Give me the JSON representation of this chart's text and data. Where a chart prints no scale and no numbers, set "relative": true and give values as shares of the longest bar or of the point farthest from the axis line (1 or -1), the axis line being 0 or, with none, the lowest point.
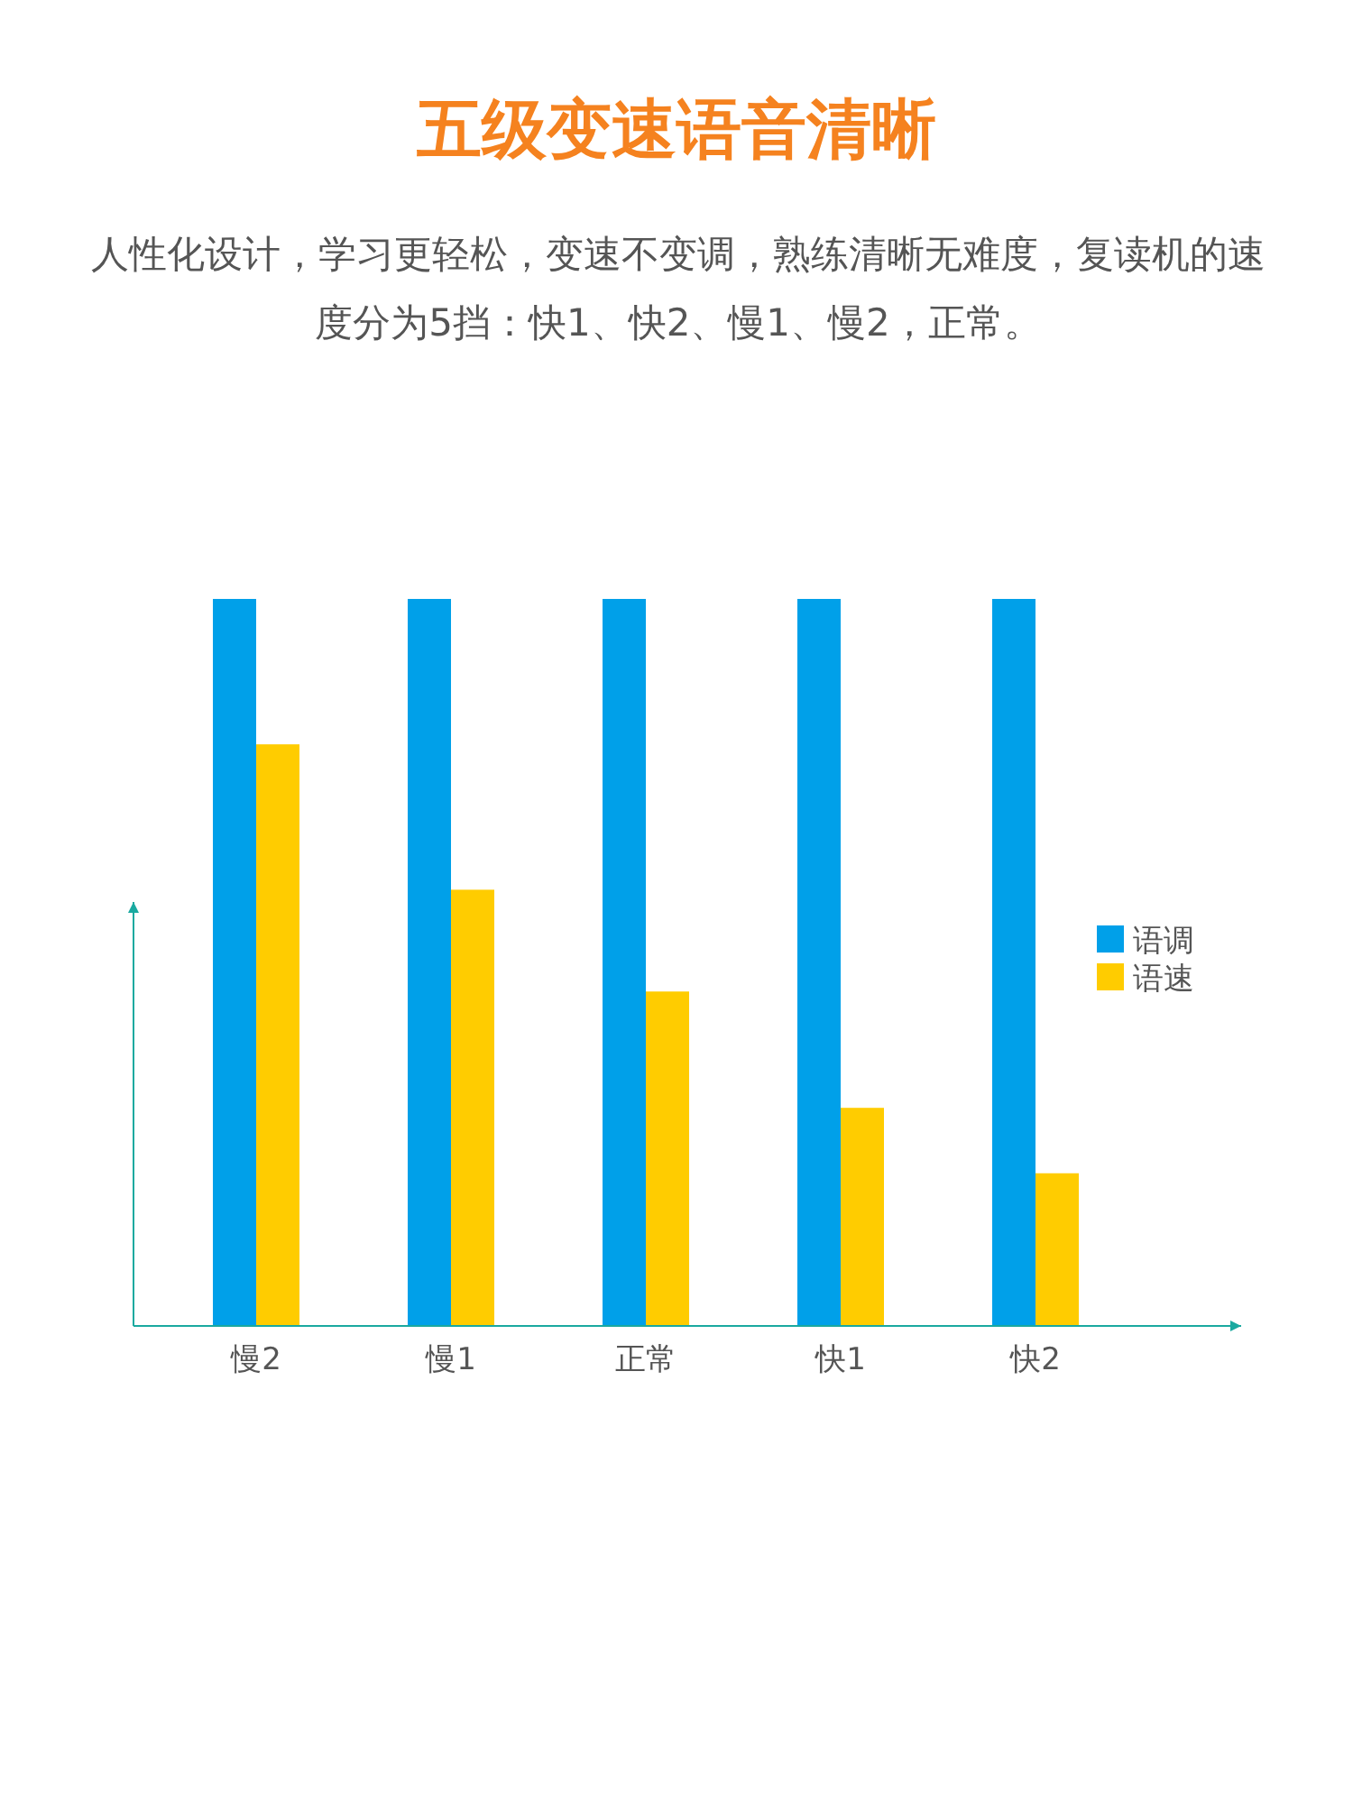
{
  "chart_data": {
    "type": "bar",
    "title": "五级变速语音清晰",
    "subtitle": "人性化设计，学习更轻松，变速不变调，熟练清晰无难度，复读机的速度分为5挡：快1、快2、慢1、慢2，正常。",
    "categories": [
      "慢2",
      "慢1",
      "正常",
      "快1",
      "快2"
    ],
    "relative": true,
    "legend": "right",
    "series": [
      {
        "name": "语调",
        "color": "#00a0e9",
        "values": [
          1,
          1,
          1,
          1,
          1
        ]
      },
      {
        "name": "语速",
        "color": "#ffcc00",
        "values": [
          0.8,
          0.6,
          0.46,
          0.3,
          0.21
        ]
      }
    ]
  }
}
